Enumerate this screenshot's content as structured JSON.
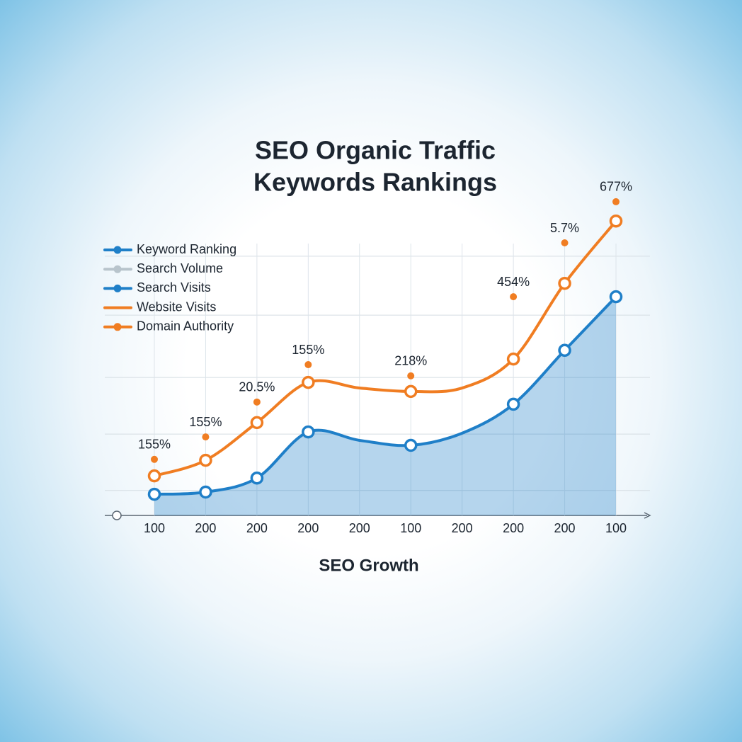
{
  "chart_data": {
    "type": "line",
    "title": "SEO Organic Traffic",
    "subtitle": "Keywords Rankings",
    "x_label": "SEO Growth",
    "categories": [
      "100",
      "200",
      "200",
      "200",
      "200",
      "100",
      "200",
      "200",
      "200",
      "100"
    ],
    "ylim": [
      0,
      110
    ],
    "yticks": [
      8.0,
      26.1,
      44.3,
      64.3,
      83.2
    ],
    "grid": true,
    "legend": "top-left",
    "series": [
      {
        "name": "Keyword Ranking",
        "color": "#1f7fc8",
        "marker": true,
        "area": true,
        "values": [
          6.8,
          7.5,
          12.0,
          26.8,
          24.1,
          22.5,
          26.4,
          35.7,
          53.0,
          70.2
        ]
      },
      {
        "name": "Search Volume",
        "color": "#b8c4cc",
        "marker": true,
        "values": [
          null,
          null,
          null,
          null,
          null,
          null,
          null,
          null,
          null,
          null
        ]
      },
      {
        "name": "Search Visits",
        "color": "#1f7fc8",
        "marker": true,
        "values": [
          null,
          null,
          null,
          null,
          null,
          null,
          null,
          null,
          null,
          null
        ]
      },
      {
        "name": "Website Visits",
        "color": "#f07d22",
        "marker": false,
        "values": [
          12.7,
          17.7,
          29.8,
          42.7,
          40.9,
          39.8,
          40.9,
          50.2,
          74.5,
          94.5
        ]
      },
      {
        "name": "Domain Authority",
        "color": "#f07d22",
        "marker": true,
        "values": [
          18.0,
          25.2,
          36.4,
          48.4,
          null,
          44.8,
          null,
          70.2,
          87.5,
          100.7
        ]
      }
    ],
    "annotations": [
      "155%",
      "155%",
      "20.5%",
      "155%",
      null,
      "218%",
      null,
      "454%",
      "5.7%",
      "677%"
    ]
  }
}
